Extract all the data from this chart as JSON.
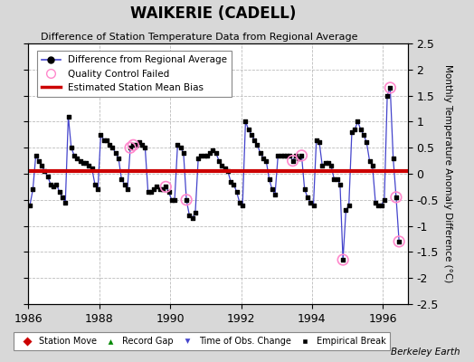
{
  "title": "WAIKERIE (CADELL)",
  "subtitle": "Difference of Station Temperature Data from Regional Average",
  "ylabel": "Monthly Temperature Anomaly Difference (°C)",
  "ylim": [
    -2.5,
    2.5
  ],
  "xlim": [
    1986,
    1996.7
  ],
  "xticks": [
    1986,
    1988,
    1990,
    1992,
    1994,
    1996
  ],
  "yticks": [
    -2.5,
    -2,
    -1.5,
    -1,
    -0.5,
    0,
    0.5,
    1,
    1.5,
    2,
    2.5
  ],
  "bias_line_y": 0.05,
  "background_color": "#d8d8d8",
  "plot_bg_color": "#ffffff",
  "line_color": "#4444cc",
  "dot_color": "#000000",
  "bias_color": "#cc0000",
  "qc_color": "#ff88cc",
  "berkeley_earth_text": "Berkeley Earth",
  "time_series": [
    [
      1986.042,
      -0.6
    ],
    [
      1986.125,
      -0.3
    ],
    [
      1986.208,
      0.35
    ],
    [
      1986.292,
      0.25
    ],
    [
      1986.375,
      0.15
    ],
    [
      1986.458,
      0.05
    ],
    [
      1986.542,
      -0.05
    ],
    [
      1986.625,
      -0.2
    ],
    [
      1986.708,
      -0.25
    ],
    [
      1986.792,
      -0.2
    ],
    [
      1986.875,
      -0.35
    ],
    [
      1986.958,
      -0.45
    ],
    [
      1987.042,
      -0.55
    ],
    [
      1987.125,
      1.1
    ],
    [
      1987.208,
      0.5
    ],
    [
      1987.292,
      0.35
    ],
    [
      1987.375,
      0.3
    ],
    [
      1987.458,
      0.25
    ],
    [
      1987.542,
      0.2
    ],
    [
      1987.625,
      0.2
    ],
    [
      1987.708,
      0.15
    ],
    [
      1987.792,
      0.1
    ],
    [
      1987.875,
      -0.2
    ],
    [
      1987.958,
      -0.3
    ],
    [
      1988.042,
      0.75
    ],
    [
      1988.125,
      0.65
    ],
    [
      1988.208,
      0.65
    ],
    [
      1988.292,
      0.55
    ],
    [
      1988.375,
      0.5
    ],
    [
      1988.458,
      0.4
    ],
    [
      1988.542,
      0.3
    ],
    [
      1988.625,
      -0.1
    ],
    [
      1988.708,
      -0.2
    ],
    [
      1988.792,
      -0.3
    ],
    [
      1988.875,
      0.5
    ],
    [
      1988.958,
      0.55
    ],
    [
      1989.042,
      0.55
    ],
    [
      1989.125,
      0.6
    ],
    [
      1989.208,
      0.55
    ],
    [
      1989.292,
      0.5
    ],
    [
      1989.375,
      -0.35
    ],
    [
      1989.458,
      -0.35
    ],
    [
      1989.542,
      -0.3
    ],
    [
      1989.625,
      -0.25
    ],
    [
      1989.708,
      -0.3
    ],
    [
      1989.792,
      -0.3
    ],
    [
      1989.875,
      -0.25
    ],
    [
      1989.958,
      -0.35
    ],
    [
      1990.042,
      -0.5
    ],
    [
      1990.125,
      -0.5
    ],
    [
      1990.208,
      0.55
    ],
    [
      1990.292,
      0.5
    ],
    [
      1990.375,
      0.4
    ],
    [
      1990.458,
      -0.5
    ],
    [
      1990.542,
      -0.8
    ],
    [
      1990.625,
      -0.85
    ],
    [
      1990.708,
      -0.75
    ],
    [
      1990.792,
      0.3
    ],
    [
      1990.875,
      0.35
    ],
    [
      1990.958,
      0.35
    ],
    [
      1991.042,
      0.35
    ],
    [
      1991.125,
      0.4
    ],
    [
      1991.208,
      0.45
    ],
    [
      1991.292,
      0.4
    ],
    [
      1991.375,
      0.25
    ],
    [
      1991.458,
      0.15
    ],
    [
      1991.542,
      0.1
    ],
    [
      1991.625,
      0.05
    ],
    [
      1991.708,
      -0.15
    ],
    [
      1991.792,
      -0.2
    ],
    [
      1991.875,
      -0.35
    ],
    [
      1991.958,
      -0.55
    ],
    [
      1992.042,
      -0.6
    ],
    [
      1992.125,
      1.0
    ],
    [
      1992.208,
      0.85
    ],
    [
      1992.292,
      0.75
    ],
    [
      1992.375,
      0.65
    ],
    [
      1992.458,
      0.55
    ],
    [
      1992.542,
      0.4
    ],
    [
      1992.625,
      0.3
    ],
    [
      1992.708,
      0.25
    ],
    [
      1992.792,
      -0.1
    ],
    [
      1992.875,
      -0.3
    ],
    [
      1992.958,
      -0.4
    ],
    [
      1993.042,
      0.35
    ],
    [
      1993.125,
      0.35
    ],
    [
      1993.208,
      0.35
    ],
    [
      1993.292,
      0.35
    ],
    [
      1993.375,
      0.35
    ],
    [
      1993.458,
      0.25
    ],
    [
      1993.542,
      0.35
    ],
    [
      1993.625,
      0.3
    ],
    [
      1993.708,
      0.35
    ],
    [
      1993.792,
      -0.3
    ],
    [
      1993.875,
      -0.45
    ],
    [
      1993.958,
      -0.55
    ],
    [
      1994.042,
      -0.6
    ],
    [
      1994.125,
      0.65
    ],
    [
      1994.208,
      0.6
    ],
    [
      1994.292,
      0.15
    ],
    [
      1994.375,
      0.2
    ],
    [
      1994.458,
      0.2
    ],
    [
      1994.542,
      0.15
    ],
    [
      1994.625,
      -0.1
    ],
    [
      1994.708,
      -0.1
    ],
    [
      1994.792,
      -0.2
    ],
    [
      1994.875,
      -1.65
    ],
    [
      1994.958,
      -0.7
    ],
    [
      1995.042,
      -0.6
    ],
    [
      1995.125,
      0.8
    ],
    [
      1995.208,
      0.85
    ],
    [
      1995.292,
      1.0
    ],
    [
      1995.375,
      0.85
    ],
    [
      1995.458,
      0.75
    ],
    [
      1995.542,
      0.6
    ],
    [
      1995.625,
      0.25
    ],
    [
      1995.708,
      0.15
    ],
    [
      1995.792,
      -0.55
    ],
    [
      1995.875,
      -0.6
    ],
    [
      1995.958,
      -0.6
    ],
    [
      1996.042,
      -0.5
    ],
    [
      1996.125,
      1.5
    ],
    [
      1996.208,
      1.65
    ],
    [
      1996.292,
      0.3
    ],
    [
      1996.375,
      -0.45
    ],
    [
      1996.458,
      -1.3
    ]
  ],
  "qc_failed": [
    [
      1988.875,
      0.5
    ],
    [
      1988.958,
      0.55
    ],
    [
      1989.875,
      -0.25
    ],
    [
      1990.458,
      -0.5
    ],
    [
      1993.458,
      0.25
    ],
    [
      1993.708,
      0.35
    ],
    [
      1994.875,
      -1.65
    ],
    [
      1996.208,
      1.65
    ],
    [
      1996.375,
      -0.45
    ],
    [
      1996.458,
      -1.3
    ]
  ]
}
